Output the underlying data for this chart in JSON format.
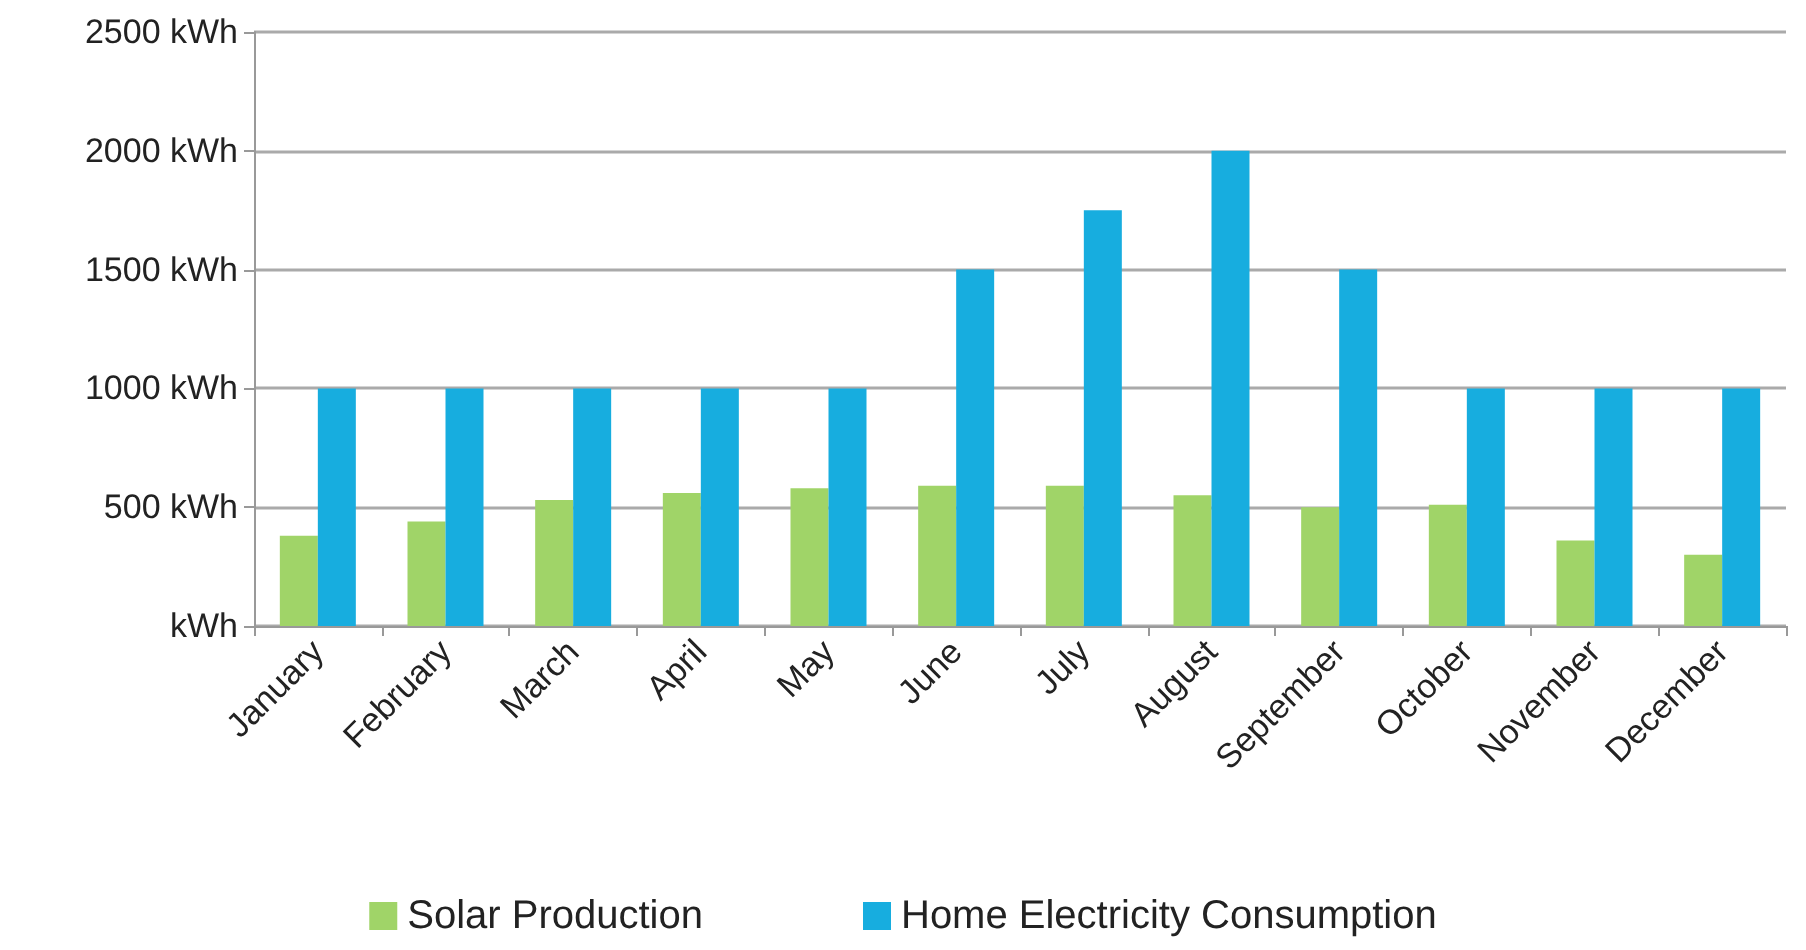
{
  "chart_data": {
    "type": "bar",
    "categories": [
      "January",
      "February",
      "March",
      "April",
      "May",
      "June",
      "July",
      "August",
      "September",
      "October",
      "November",
      "December"
    ],
    "series": [
      {
        "name": "Solar Production",
        "color": "#a0d468",
        "values": [
          380,
          440,
          530,
          560,
          580,
          590,
          590,
          550,
          500,
          510,
          360,
          300
        ]
      },
      {
        "name": "Home Electricity Consumption",
        "color": "#17addf",
        "values": [
          1000,
          1000,
          1000,
          1000,
          1000,
          1500,
          1750,
          2000,
          1500,
          1000,
          1000,
          1000
        ]
      }
    ],
    "ylim": [
      0,
      2500
    ],
    "yticks": [
      {
        "value": 0,
        "label": "kWh"
      },
      {
        "value": 500,
        "label": "500 kWh"
      },
      {
        "value": 1000,
        "label": "1000 kWh"
      },
      {
        "value": 1500,
        "label": "1500 kWh"
      },
      {
        "value": 2000,
        "label": "2000 kWh"
      },
      {
        "value": 2500,
        "label": "2500 kWh"
      }
    ],
    "grid": "y",
    "legend": "bottom"
  }
}
